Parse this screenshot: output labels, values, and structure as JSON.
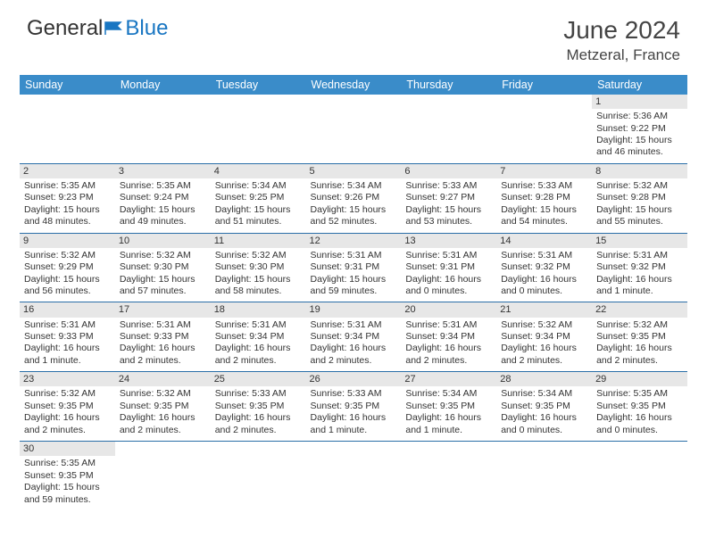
{
  "logo": {
    "text1": "General",
    "text2": "Blue"
  },
  "title": "June 2024",
  "location": "Metzeral, France",
  "colors": {
    "header_bg": "#3a8cc9",
    "divider": "#2a6fa8",
    "daybar": "#e7e7e7",
    "text": "#333333",
    "logo_blue": "#1976c2"
  },
  "weekdays": [
    "Sunday",
    "Monday",
    "Tuesday",
    "Wednesday",
    "Thursday",
    "Friday",
    "Saturday"
  ],
  "weeks": [
    [
      null,
      null,
      null,
      null,
      null,
      null,
      {
        "d": "1",
        "sunrise": "Sunrise: 5:36 AM",
        "sunset": "Sunset: 9:22 PM",
        "daylight": "Daylight: 15 hours and 46 minutes."
      }
    ],
    [
      {
        "d": "2",
        "sunrise": "Sunrise: 5:35 AM",
        "sunset": "Sunset: 9:23 PM",
        "daylight": "Daylight: 15 hours and 48 minutes."
      },
      {
        "d": "3",
        "sunrise": "Sunrise: 5:35 AM",
        "sunset": "Sunset: 9:24 PM",
        "daylight": "Daylight: 15 hours and 49 minutes."
      },
      {
        "d": "4",
        "sunrise": "Sunrise: 5:34 AM",
        "sunset": "Sunset: 9:25 PM",
        "daylight": "Daylight: 15 hours and 51 minutes."
      },
      {
        "d": "5",
        "sunrise": "Sunrise: 5:34 AM",
        "sunset": "Sunset: 9:26 PM",
        "daylight": "Daylight: 15 hours and 52 minutes."
      },
      {
        "d": "6",
        "sunrise": "Sunrise: 5:33 AM",
        "sunset": "Sunset: 9:27 PM",
        "daylight": "Daylight: 15 hours and 53 minutes."
      },
      {
        "d": "7",
        "sunrise": "Sunrise: 5:33 AM",
        "sunset": "Sunset: 9:28 PM",
        "daylight": "Daylight: 15 hours and 54 minutes."
      },
      {
        "d": "8",
        "sunrise": "Sunrise: 5:32 AM",
        "sunset": "Sunset: 9:28 PM",
        "daylight": "Daylight: 15 hours and 55 minutes."
      }
    ],
    [
      {
        "d": "9",
        "sunrise": "Sunrise: 5:32 AM",
        "sunset": "Sunset: 9:29 PM",
        "daylight": "Daylight: 15 hours and 56 minutes."
      },
      {
        "d": "10",
        "sunrise": "Sunrise: 5:32 AM",
        "sunset": "Sunset: 9:30 PM",
        "daylight": "Daylight: 15 hours and 57 minutes."
      },
      {
        "d": "11",
        "sunrise": "Sunrise: 5:32 AM",
        "sunset": "Sunset: 9:30 PM",
        "daylight": "Daylight: 15 hours and 58 minutes."
      },
      {
        "d": "12",
        "sunrise": "Sunrise: 5:31 AM",
        "sunset": "Sunset: 9:31 PM",
        "daylight": "Daylight: 15 hours and 59 minutes."
      },
      {
        "d": "13",
        "sunrise": "Sunrise: 5:31 AM",
        "sunset": "Sunset: 9:31 PM",
        "daylight": "Daylight: 16 hours and 0 minutes."
      },
      {
        "d": "14",
        "sunrise": "Sunrise: 5:31 AM",
        "sunset": "Sunset: 9:32 PM",
        "daylight": "Daylight: 16 hours and 0 minutes."
      },
      {
        "d": "15",
        "sunrise": "Sunrise: 5:31 AM",
        "sunset": "Sunset: 9:32 PM",
        "daylight": "Daylight: 16 hours and 1 minute."
      }
    ],
    [
      {
        "d": "16",
        "sunrise": "Sunrise: 5:31 AM",
        "sunset": "Sunset: 9:33 PM",
        "daylight": "Daylight: 16 hours and 1 minute."
      },
      {
        "d": "17",
        "sunrise": "Sunrise: 5:31 AM",
        "sunset": "Sunset: 9:33 PM",
        "daylight": "Daylight: 16 hours and 2 minutes."
      },
      {
        "d": "18",
        "sunrise": "Sunrise: 5:31 AM",
        "sunset": "Sunset: 9:34 PM",
        "daylight": "Daylight: 16 hours and 2 minutes."
      },
      {
        "d": "19",
        "sunrise": "Sunrise: 5:31 AM",
        "sunset": "Sunset: 9:34 PM",
        "daylight": "Daylight: 16 hours and 2 minutes."
      },
      {
        "d": "20",
        "sunrise": "Sunrise: 5:31 AM",
        "sunset": "Sunset: 9:34 PM",
        "daylight": "Daylight: 16 hours and 2 minutes."
      },
      {
        "d": "21",
        "sunrise": "Sunrise: 5:32 AM",
        "sunset": "Sunset: 9:34 PM",
        "daylight": "Daylight: 16 hours and 2 minutes."
      },
      {
        "d": "22",
        "sunrise": "Sunrise: 5:32 AM",
        "sunset": "Sunset: 9:35 PM",
        "daylight": "Daylight: 16 hours and 2 minutes."
      }
    ],
    [
      {
        "d": "23",
        "sunrise": "Sunrise: 5:32 AM",
        "sunset": "Sunset: 9:35 PM",
        "daylight": "Daylight: 16 hours and 2 minutes."
      },
      {
        "d": "24",
        "sunrise": "Sunrise: 5:32 AM",
        "sunset": "Sunset: 9:35 PM",
        "daylight": "Daylight: 16 hours and 2 minutes."
      },
      {
        "d": "25",
        "sunrise": "Sunrise: 5:33 AM",
        "sunset": "Sunset: 9:35 PM",
        "daylight": "Daylight: 16 hours and 2 minutes."
      },
      {
        "d": "26",
        "sunrise": "Sunrise: 5:33 AM",
        "sunset": "Sunset: 9:35 PM",
        "daylight": "Daylight: 16 hours and 1 minute."
      },
      {
        "d": "27",
        "sunrise": "Sunrise: 5:34 AM",
        "sunset": "Sunset: 9:35 PM",
        "daylight": "Daylight: 16 hours and 1 minute."
      },
      {
        "d": "28",
        "sunrise": "Sunrise: 5:34 AM",
        "sunset": "Sunset: 9:35 PM",
        "daylight": "Daylight: 16 hours and 0 minutes."
      },
      {
        "d": "29",
        "sunrise": "Sunrise: 5:35 AM",
        "sunset": "Sunset: 9:35 PM",
        "daylight": "Daylight: 16 hours and 0 minutes."
      }
    ],
    [
      {
        "d": "30",
        "sunrise": "Sunrise: 5:35 AM",
        "sunset": "Sunset: 9:35 PM",
        "daylight": "Daylight: 15 hours and 59 minutes."
      },
      null,
      null,
      null,
      null,
      null,
      null
    ]
  ]
}
